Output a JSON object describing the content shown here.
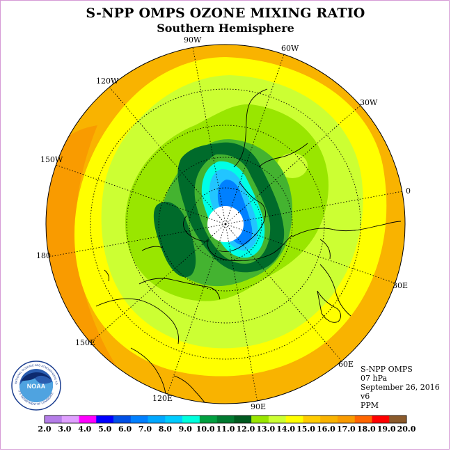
{
  "header": {
    "title": "S-NPP OMPS OZONE MIXING RATIO",
    "subtitle": "Southern Hemisphere"
  },
  "map": {
    "projection": "south-polar-stereographic",
    "longitude_labels": [
      {
        "text": "90W",
        "lon": -90
      },
      {
        "text": "60W",
        "lon": -60
      },
      {
        "text": "30W",
        "lon": -30
      },
      {
        "text": "0",
        "lon": 0
      },
      {
        "text": "30E",
        "lon": 30
      },
      {
        "text": "60E",
        "lon": 60
      },
      {
        "text": "90E",
        "lon": 90
      },
      {
        "text": "120E",
        "lon": 120
      },
      {
        "text": "150E",
        "lon": 150
      },
      {
        "text": "180",
        "lon": 180
      },
      {
        "text": "150W",
        "lon": -150
      },
      {
        "text": "120W",
        "lon": -120
      }
    ],
    "field_colors": {
      "outer_orange": "#f9b300",
      "dark_orange": "#f99b00",
      "yellow": "#ffff00",
      "yellow_green": "#ccff33",
      "light_green": "#99e600",
      "green": "#44b330",
      "dark_green": "#006b2b",
      "cyan": "#00ffe6",
      "light_blue": "#22c5ff",
      "blue": "#0080ff",
      "pole_hole": "#ffffff"
    }
  },
  "info": {
    "instrument": "S-NPP OMPS",
    "level": "07 hPa",
    "date": "September 26, 2016",
    "version": "v6",
    "units": "PPM"
  },
  "logo": {
    "text": "NOAA",
    "ring_text": "NATIONAL OCEANIC AND ATMOSPHERIC ADMINISTRATION",
    "ring_text_bottom": "U.S. DEPARTMENT OF COMMERCE"
  },
  "colorbar": {
    "ticks": [
      "2.0",
      "3.0",
      "4.0",
      "5.0",
      "6.0",
      "7.0",
      "8.0",
      "9.0",
      "10.0",
      "11.0",
      "12.0",
      "13.0",
      "14.0",
      "15.0",
      "16.0",
      "17.0",
      "18.0",
      "19.0",
      "20.0"
    ],
    "colors": [
      "#b57de8",
      "#e0a0ff",
      "#ff00ff",
      "#0000ff",
      "#0050e6",
      "#0080ff",
      "#00a8ff",
      "#00ccff",
      "#00ffdd",
      "#00a040",
      "#007a30",
      "#005a20",
      "#99e600",
      "#ccff33",
      "#ffff00",
      "#ffcc00",
      "#f9b300",
      "#f99b00",
      "#ff6600",
      "#ff0000",
      "#8b5a2b"
    ]
  }
}
